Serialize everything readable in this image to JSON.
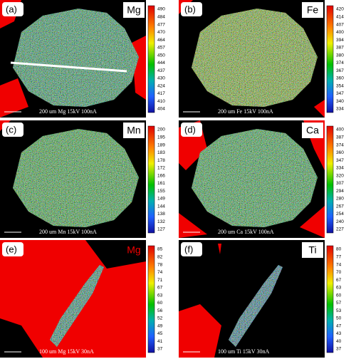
{
  "panels": [
    {
      "label": "(a)",
      "element": "Mg",
      "caption": "200 um   Mg  15kV 100nA",
      "scale": [
        490,
        484,
        477,
        470,
        464,
        457,
        450,
        444,
        437,
        430,
        424,
        417,
        410,
        404
      ]
    },
    {
      "label": "(b)",
      "element": "Fe",
      "caption": "200 um   Fe  15kV 100nA",
      "scale": [
        420,
        414,
        407,
        400,
        394,
        387,
        380,
        374,
        367,
        360,
        354,
        347,
        340,
        334
      ]
    },
    {
      "label": "(c)",
      "element": "Mn",
      "caption": "200 um   Mn  15kV 100nA",
      "scale": [
        200,
        195,
        189,
        183,
        178,
        172,
        166,
        161,
        155,
        149,
        144,
        138,
        132,
        127
      ]
    },
    {
      "label": "(d)",
      "element": "Ca",
      "caption": "200 um   Ca  15kV 100nA",
      "scale": [
        400,
        387,
        374,
        360,
        347,
        334,
        320,
        307,
        294,
        280,
        267,
        254,
        240,
        227
      ]
    },
    {
      "label": "(e)",
      "element": "Mg",
      "caption": "100 um   Mg  15kV 30nA",
      "scale": [
        85,
        82,
        78,
        74,
        71,
        67,
        63,
        60,
        56,
        52,
        49,
        45,
        41,
        37
      ]
    },
    {
      "label": "(f)",
      "element": "Ti",
      "caption": "100 um   Ti  15kV 30nA",
      "scale": [
        80,
        77,
        74,
        70,
        67,
        63,
        60,
        57,
        53,
        50,
        47,
        43,
        40,
        37
      ]
    }
  ]
}
